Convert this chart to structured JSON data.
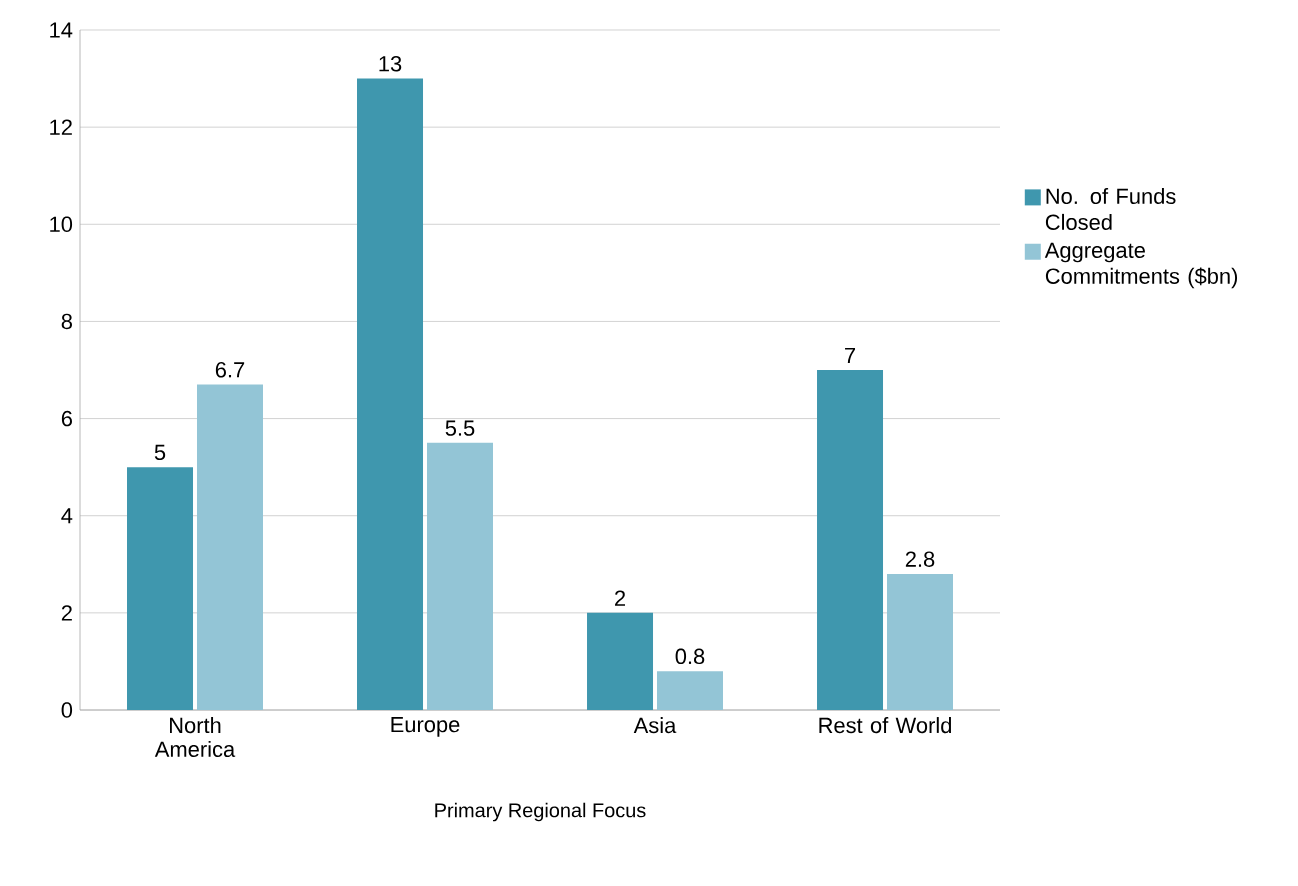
{
  "chart_data": {
    "type": "bar",
    "xlabel": "Primary Regional Focus",
    "categories": [
      "North America",
      "Europe",
      "Asia",
      "Rest of World"
    ],
    "series": [
      {
        "name": "No. of Funds Closed",
        "color": "#3f97ae",
        "values": [
          5,
          13,
          2,
          7
        ]
      },
      {
        "name": "Aggregate Commitments ($bn)",
        "color": "#93c5d6",
        "values": [
          6.7,
          5.5,
          0.8,
          2.8
        ]
      }
    ],
    "ylim": [
      0,
      14
    ],
    "yticks": [
      0,
      2,
      4,
      6,
      8,
      10,
      12,
      14
    ],
    "grid": "y",
    "legend": "right",
    "data_labels": true
  }
}
